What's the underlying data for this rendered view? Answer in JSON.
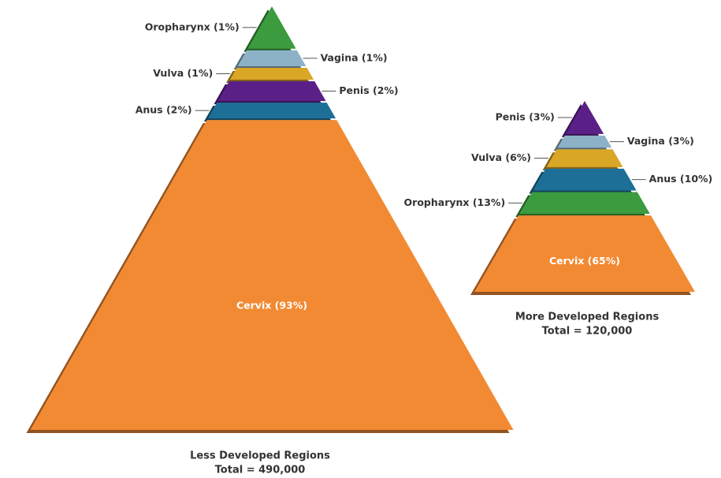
{
  "chart_data": [
    {
      "type": "pyramid",
      "value_labels": [
        "Oropharynx (1%)",
        "Vagina (1%)",
        "Vulva (1%)",
        "Penis (2%)",
        "Anus (2%)",
        "Cervix (93%)"
      ],
      "values": [
        1,
        1,
        1,
        2,
        2,
        93
      ],
      "colors": [
        "#3b9b3e",
        "#8db2c8",
        "#d9a626",
        "#5b2088",
        "#1d6f98",
        "#f28a33"
      ],
      "subtitle": "Less Developed Regions",
      "total_label": "Total = 490,000"
    },
    {
      "type": "pyramid",
      "value_labels": [
        "Penis (3%)",
        "Vagina (3%)",
        "Vulva (6%)",
        "Anus (10%)",
        "Oropharynx (13%)",
        "Cervix (65%)"
      ],
      "values": [
        3,
        3,
        6,
        10,
        13,
        65
      ],
      "colors": [
        "#5b2088",
        "#8db2c8",
        "#d9a626",
        "#1d6f98",
        "#3b9b3e",
        "#f28a33"
      ],
      "subtitle": "More Developed Regions",
      "total_label": "Total = 120,000"
    }
  ]
}
